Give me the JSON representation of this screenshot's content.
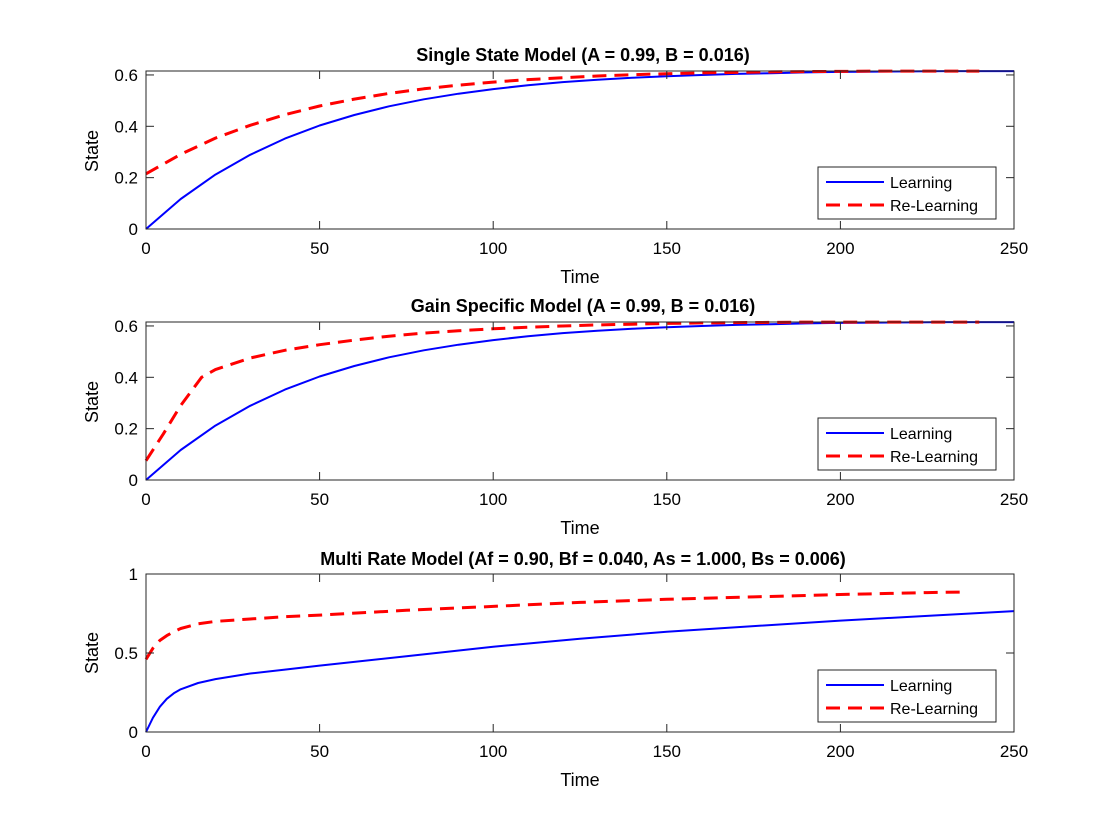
{
  "chart_data": [
    {
      "type": "line",
      "title": "Single State Model (A = 0.99, B = 0.016)",
      "xlabel": "Time",
      "ylabel": "State",
      "xlim": [
        0,
        250
      ],
      "ylim": [
        0,
        0.6154
      ],
      "xticks": [
        0,
        50,
        100,
        150,
        200,
        250
      ],
      "xtick_labels": [
        "0",
        "50",
        "100",
        "150",
        "200",
        "250"
      ],
      "yticks": [
        0,
        0.2,
        0.4,
        0.6
      ],
      "ytick_labels": [
        "0",
        "0.2",
        "0.4",
        "0.6"
      ],
      "grid": false,
      "legend_position": "bottom-right",
      "series": [
        {
          "name": "Learning",
          "color": "#0000ff",
          "style": "solid",
          "x": [
            0,
            10,
            20,
            30,
            40,
            50,
            60,
            70,
            80,
            90,
            100,
            110,
            120,
            130,
            140,
            150,
            160,
            170,
            180,
            190,
            200,
            210,
            220,
            230,
            240,
            250
          ],
          "values": [
            0,
            0.117,
            0.212,
            0.289,
            0.352,
            0.403,
            0.444,
            0.478,
            0.505,
            0.527,
            0.545,
            0.56,
            0.572,
            0.581,
            0.589,
            0.595,
            0.6,
            0.604,
            0.607,
            0.61,
            0.612,
            0.613,
            0.614,
            0.615,
            0.615,
            0.615
          ]
        },
        {
          "name": "Re-Learning",
          "color": "#ff0000",
          "style": "dashed",
          "x": [
            0,
            10,
            20,
            30,
            40,
            50,
            60,
            70,
            80,
            90,
            100,
            110,
            120,
            130,
            140,
            150,
            160,
            170,
            180,
            190,
            200,
            210,
            220,
            230,
            240
          ],
          "values": [
            0.215,
            0.291,
            0.354,
            0.404,
            0.445,
            0.479,
            0.506,
            0.528,
            0.546,
            0.56,
            0.572,
            0.582,
            0.589,
            0.596,
            0.601,
            0.605,
            0.608,
            0.61,
            0.612,
            0.613,
            0.614,
            0.615,
            0.615,
            0.615,
            0.615
          ]
        }
      ]
    },
    {
      "type": "line",
      "title": "Gain Specific Model (A = 0.99, B = 0.016)",
      "xlabel": "Time",
      "ylabel": "State",
      "xlim": [
        0,
        250
      ],
      "ylim": [
        0,
        0.6154
      ],
      "xticks": [
        0,
        50,
        100,
        150,
        200,
        250
      ],
      "xtick_labels": [
        "0",
        "50",
        "100",
        "150",
        "200",
        "250"
      ],
      "yticks": [
        0,
        0.2,
        0.4,
        0.6
      ],
      "ytick_labels": [
        "0",
        "0.2",
        "0.4",
        "0.6"
      ],
      "grid": false,
      "legend_position": "bottom-right",
      "series": [
        {
          "name": "Learning",
          "color": "#0000ff",
          "style": "solid",
          "x": [
            0,
            10,
            20,
            30,
            40,
            50,
            60,
            70,
            80,
            90,
            100,
            110,
            120,
            130,
            140,
            150,
            160,
            170,
            180,
            190,
            200,
            210,
            220,
            230,
            240,
            250
          ],
          "values": [
            0,
            0.117,
            0.212,
            0.289,
            0.352,
            0.403,
            0.444,
            0.478,
            0.505,
            0.527,
            0.545,
            0.56,
            0.572,
            0.581,
            0.589,
            0.595,
            0.6,
            0.604,
            0.607,
            0.61,
            0.612,
            0.613,
            0.614,
            0.615,
            0.615,
            0.615
          ]
        },
        {
          "name": "Re-Learning",
          "color": "#ff0000",
          "style": "dashed",
          "x": [
            0,
            5,
            10,
            16,
            20,
            30,
            40,
            50,
            60,
            70,
            80,
            90,
            100,
            110,
            120,
            130,
            140,
            150,
            160,
            170,
            180,
            190,
            200,
            210,
            220,
            230,
            240
          ],
          "values": [
            0.075,
            0.18,
            0.29,
            0.4,
            0.43,
            0.475,
            0.505,
            0.527,
            0.545,
            0.56,
            0.572,
            0.581,
            0.589,
            0.595,
            0.6,
            0.604,
            0.607,
            0.61,
            0.612,
            0.613,
            0.614,
            0.615,
            0.615,
            0.615,
            0.615,
            0.615,
            0.615
          ]
        }
      ]
    },
    {
      "type": "line",
      "title": "Multi Rate Model (Af = 0.90, Bf = 0.040, As = 1.000, Bs = 0.006)",
      "xlabel": "Time",
      "ylabel": "State",
      "xlim": [
        0,
        250
      ],
      "ylim": [
        0,
        1
      ],
      "xticks": [
        0,
        50,
        100,
        150,
        200,
        250
      ],
      "xtick_labels": [
        "0",
        "50",
        "100",
        "150",
        "200",
        "250"
      ],
      "yticks": [
        0,
        0.5,
        1
      ],
      "ytick_labels": [
        "0",
        "0.5",
        "1"
      ],
      "grid": false,
      "legend_position": "bottom-right",
      "series": [
        {
          "name": "Learning",
          "color": "#0000ff",
          "style": "solid",
          "x": [
            0,
            2,
            4,
            6,
            8,
            10,
            15,
            20,
            30,
            40,
            50,
            75,
            100,
            125,
            150,
            175,
            200,
            225,
            250
          ],
          "values": [
            0,
            0.09,
            0.16,
            0.21,
            0.245,
            0.27,
            0.31,
            0.335,
            0.37,
            0.395,
            0.42,
            0.48,
            0.54,
            0.59,
            0.635,
            0.67,
            0.705,
            0.735,
            0.765
          ]
        },
        {
          "name": "Re-Learning",
          "color": "#ff0000",
          "style": "dashed",
          "x": [
            0,
            2,
            4,
            6,
            8,
            10,
            15,
            20,
            30,
            40,
            50,
            75,
            100,
            125,
            150,
            175,
            200,
            225,
            236
          ],
          "values": [
            0.46,
            0.53,
            0.58,
            0.61,
            0.635,
            0.655,
            0.685,
            0.7,
            0.715,
            0.73,
            0.74,
            0.77,
            0.795,
            0.82,
            0.84,
            0.855,
            0.87,
            0.882,
            0.886
          ]
        }
      ]
    }
  ]
}
